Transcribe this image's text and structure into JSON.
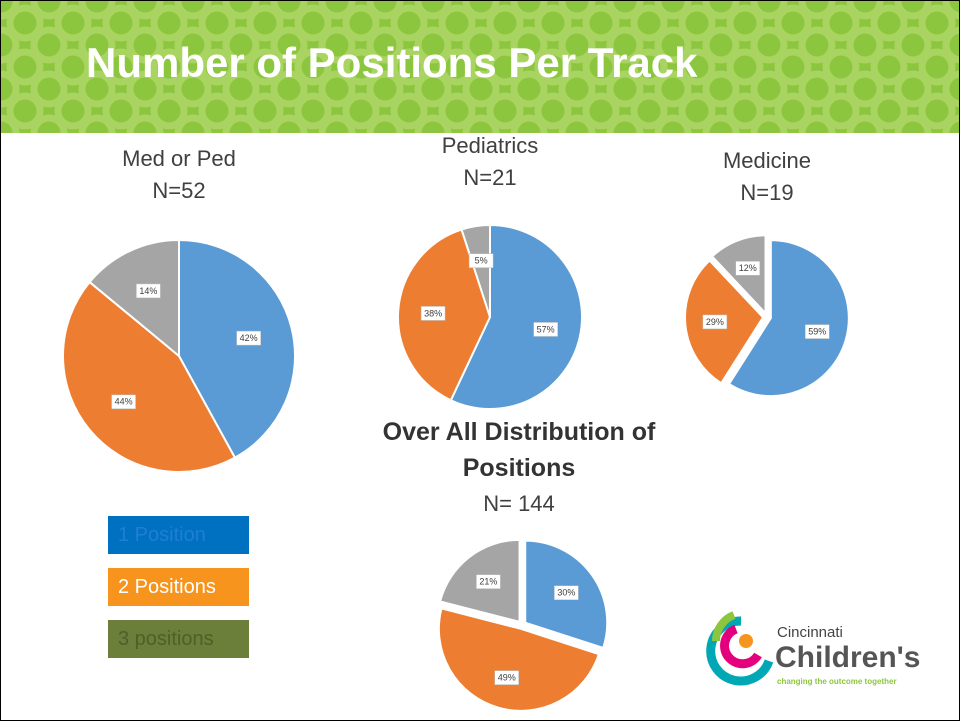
{
  "slide": {
    "title": "Number of Positions Per Track",
    "legend_boxes": [
      {
        "label": "1 Position",
        "color": "#0070c0",
        "text_color": "#1f7fd0"
      },
      {
        "label": "2 Positions",
        "color": "#f7941d",
        "text_color": "#ffffff"
      },
      {
        "label": "3 positions",
        "color": "#6b7f3a",
        "text_color": "#4e5f28"
      }
    ],
    "logo": {
      "line1": "Cincinnati",
      "line2": "Children's",
      "tagline": "changing the outcome together"
    }
  },
  "chart_data": [
    {
      "type": "pie",
      "title": "Med or Ped",
      "subtitle": "N=52",
      "values": [
        42,
        44,
        14
      ],
      "value_labels": [
        "42%",
        "44%",
        "14%"
      ],
      "colors": [
        "#5b9bd5",
        "#ed7d31",
        "#a5a5a5"
      ],
      "exploded": false
    },
    {
      "type": "pie",
      "title": "Pediatrics",
      "subtitle": "N=21",
      "values": [
        57,
        38,
        5
      ],
      "value_labels": [
        "57%",
        "38%",
        "5%"
      ],
      "colors": [
        "#5b9bd5",
        "#ed7d31",
        "#a5a5a5"
      ],
      "exploded": false
    },
    {
      "type": "pie",
      "title": "Medicine",
      "subtitle": "N=19",
      "values": [
        59,
        29,
        12
      ],
      "value_labels": [
        "59%",
        "29%",
        "12%"
      ],
      "colors": [
        "#5b9bd5",
        "#ed7d31",
        "#a5a5a5"
      ],
      "exploded": true
    },
    {
      "type": "pie",
      "title": "Over All Distribution of Positions",
      "subtitle": "N= 144",
      "values": [
        30,
        49,
        21
      ],
      "value_labels": [
        "30%",
        "49%",
        "21%"
      ],
      "colors": [
        "#5b9bd5",
        "#ed7d31",
        "#a5a5a5"
      ],
      "exploded": true
    }
  ]
}
